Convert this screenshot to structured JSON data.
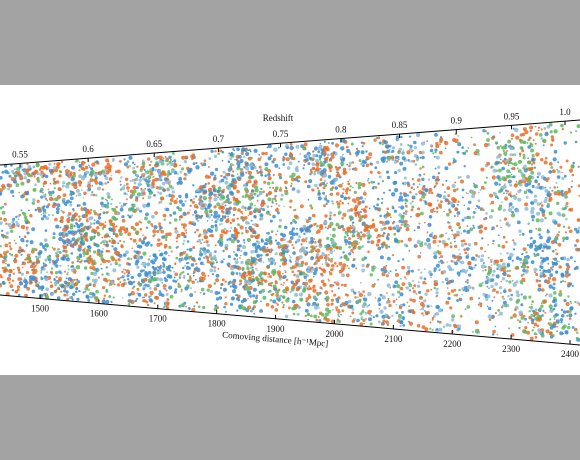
{
  "figure": {
    "top_axis": {
      "label": "Redshift",
      "ticks": [
        0.55,
        0.6,
        0.65,
        0.7,
        0.75,
        0.8,
        0.85,
        0.9,
        0.95,
        {
          "value": 1,
          "label": "1.0"
        }
      ]
    },
    "bottom_axis": {
      "label": "Comoving distance [h⁻¹Mpc]",
      "ticks": [
        1500,
        1600,
        1700,
        1800,
        1900,
        2000,
        2100,
        2200,
        2300,
        2400
      ]
    }
  }
}
